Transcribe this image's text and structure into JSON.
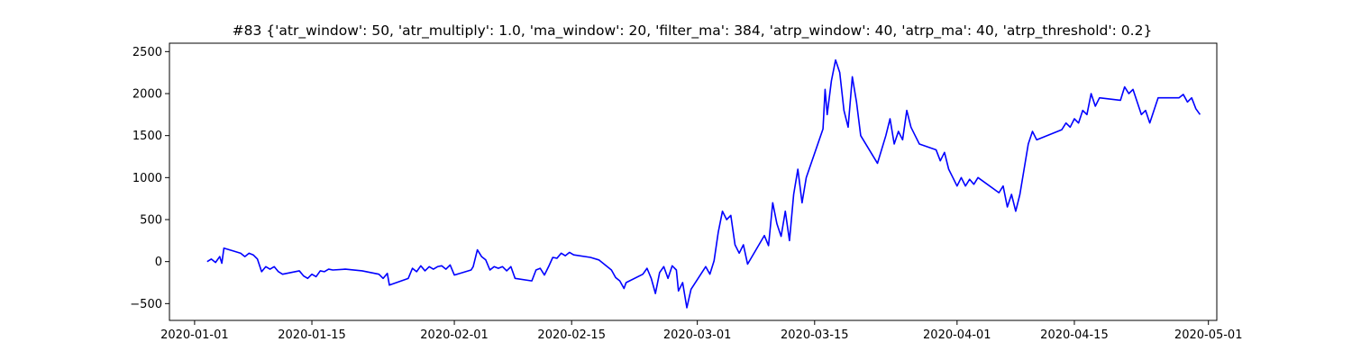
{
  "chart_data": {
    "type": "line",
    "title": "#83 {'atr_window': 50, 'atr_multiply': 1.0, 'ma_window': 20, 'filter_ma': 384, 'atrp_window': 40, 'atrp_ma': 40, 'atrp_threshold': 0.2}",
    "xlabel": "",
    "ylabel": "",
    "xlim": [
      "2019-12-29",
      "2020-05-02"
    ],
    "ylim": [
      -700,
      2600
    ],
    "grid": false,
    "line_color": "#0000ff",
    "x_ticks": [
      {
        "date": "2020-01-01",
        "label": "2020-01-01"
      },
      {
        "date": "2020-01-15",
        "label": "2020-01-15"
      },
      {
        "date": "2020-02-01",
        "label": "2020-02-01"
      },
      {
        "date": "2020-02-15",
        "label": "2020-02-15"
      },
      {
        "date": "2020-03-01",
        "label": "2020-03-01"
      },
      {
        "date": "2020-03-15",
        "label": "2020-03-15"
      },
      {
        "date": "2020-04-01",
        "label": "2020-04-01"
      },
      {
        "date": "2020-04-15",
        "label": "2020-04-15"
      },
      {
        "date": "2020-05-01",
        "label": "2020-05-01"
      }
    ],
    "y_ticks": [
      {
        "value": -500,
        "label": "−500"
      },
      {
        "value": 0,
        "label": "0"
      },
      {
        "value": 500,
        "label": "500"
      },
      {
        "value": 1000,
        "label": "1000"
      },
      {
        "value": 1500,
        "label": "1500"
      },
      {
        "value": 2000,
        "label": "2000"
      },
      {
        "value": 2500,
        "label": "2500"
      }
    ],
    "series": [
      {
        "points": [
          [
            "2020-01-02 12:00",
            0
          ],
          [
            "2020-01-03 00:00",
            30
          ],
          [
            "2020-01-03 12:00",
            -10
          ],
          [
            "2020-01-04 00:00",
            60
          ],
          [
            "2020-01-04 06:00",
            -20
          ],
          [
            "2020-01-04 12:00",
            160
          ],
          [
            "2020-01-05 12:00",
            130
          ],
          [
            "2020-01-06 12:00",
            100
          ],
          [
            "2020-01-07 00:00",
            60
          ],
          [
            "2020-01-07 12:00",
            100
          ],
          [
            "2020-01-08 00:00",
            80
          ],
          [
            "2020-01-08 12:00",
            30
          ],
          [
            "2020-01-09 00:00",
            -120
          ],
          [
            "2020-01-09 12:00",
            -60
          ],
          [
            "2020-01-10 00:00",
            -90
          ],
          [
            "2020-01-10 12:00",
            -60
          ],
          [
            "2020-01-11 00:00",
            -120
          ],
          [
            "2020-01-11 12:00",
            -150
          ],
          [
            "2020-01-13 12:00",
            -110
          ],
          [
            "2020-01-14 00:00",
            -170
          ],
          [
            "2020-01-14 12:00",
            -200
          ],
          [
            "2020-01-15 00:00",
            -150
          ],
          [
            "2020-01-15 12:00",
            -180
          ],
          [
            "2020-01-16 00:00",
            -110
          ],
          [
            "2020-01-16 12:00",
            -120
          ],
          [
            "2020-01-17 00:00",
            -90
          ],
          [
            "2020-01-17 12:00",
            -100
          ],
          [
            "2020-01-19 00:00",
            -90
          ],
          [
            "2020-01-21 00:00",
            -110
          ],
          [
            "2020-01-22 00:00",
            -130
          ],
          [
            "2020-01-23 00:00",
            -150
          ],
          [
            "2020-01-23 12:00",
            -200
          ],
          [
            "2020-01-24 00:00",
            -140
          ],
          [
            "2020-01-24 06:00",
            -280
          ],
          [
            "2020-01-26 12:00",
            -200
          ],
          [
            "2020-01-27 00:00",
            -80
          ],
          [
            "2020-01-27 12:00",
            -120
          ],
          [
            "2020-01-28 00:00",
            -50
          ],
          [
            "2020-01-28 12:00",
            -110
          ],
          [
            "2020-01-29 00:00",
            -60
          ],
          [
            "2020-01-29 12:00",
            -90
          ],
          [
            "2020-01-30 00:00",
            -60
          ],
          [
            "2020-01-30 12:00",
            -50
          ],
          [
            "2020-01-31 00:00",
            -90
          ],
          [
            "2020-01-31 12:00",
            -40
          ],
          [
            "2020-02-01 00:00",
            -160
          ],
          [
            "2020-02-03 00:00",
            -100
          ],
          [
            "2020-02-03 06:00",
            -60
          ],
          [
            "2020-02-03 18:00",
            140
          ],
          [
            "2020-02-04 06:00",
            60
          ],
          [
            "2020-02-04 18:00",
            20
          ],
          [
            "2020-02-05 06:00",
            -100
          ],
          [
            "2020-02-05 18:00",
            -60
          ],
          [
            "2020-02-06 06:00",
            -80
          ],
          [
            "2020-02-06 18:00",
            -60
          ],
          [
            "2020-02-07 06:00",
            -110
          ],
          [
            "2020-02-07 18:00",
            -60
          ],
          [
            "2020-02-08 06:00",
            -200
          ],
          [
            "2020-02-10 06:00",
            -230
          ],
          [
            "2020-02-10 18:00",
            -100
          ],
          [
            "2020-02-11 06:00",
            -80
          ],
          [
            "2020-02-11 18:00",
            -160
          ],
          [
            "2020-02-12 06:00",
            -60
          ],
          [
            "2020-02-12 18:00",
            50
          ],
          [
            "2020-02-13 06:00",
            40
          ],
          [
            "2020-02-13 18:00",
            100
          ],
          [
            "2020-02-14 06:00",
            70
          ],
          [
            "2020-02-14 18:00",
            110
          ],
          [
            "2020-02-15 06:00",
            80
          ],
          [
            "2020-02-17 06:00",
            50
          ],
          [
            "2020-02-18 06:00",
            20
          ],
          [
            "2020-02-18 18:00",
            -20
          ],
          [
            "2020-02-19 06:00",
            -60
          ],
          [
            "2020-02-19 18:00",
            -100
          ],
          [
            "2020-02-20 06:00",
            -190
          ],
          [
            "2020-02-20 18:00",
            -230
          ],
          [
            "2020-02-21 06:00",
            -320
          ],
          [
            "2020-02-21 12:00",
            -250
          ],
          [
            "2020-02-23 12:00",
            -150
          ],
          [
            "2020-02-24 00:00",
            -80
          ],
          [
            "2020-02-24 12:00",
            -200
          ],
          [
            "2020-02-25 00:00",
            -380
          ],
          [
            "2020-02-25 12:00",
            -130
          ],
          [
            "2020-02-26 00:00",
            -60
          ],
          [
            "2020-02-26 12:00",
            -200
          ],
          [
            "2020-02-27 00:00",
            -50
          ],
          [
            "2020-02-27 12:00",
            -100
          ],
          [
            "2020-02-27 18:00",
            -350
          ],
          [
            "2020-02-28 06:00",
            -250
          ],
          [
            "2020-02-28 18:00",
            -550
          ],
          [
            "2020-02-29 06:00",
            -330
          ],
          [
            "2020-03-02 00:00",
            -60
          ],
          [
            "2020-03-02 12:00",
            -150
          ],
          [
            "2020-03-03 00:00",
            10
          ],
          [
            "2020-03-03 12:00",
            350
          ],
          [
            "2020-03-04 00:00",
            600
          ],
          [
            "2020-03-04 12:00",
            500
          ],
          [
            "2020-03-05 00:00",
            550
          ],
          [
            "2020-03-05 12:00",
            200
          ],
          [
            "2020-03-06 00:00",
            100
          ],
          [
            "2020-03-06 12:00",
            200
          ],
          [
            "2020-03-07 00:00",
            -30
          ],
          [
            "2020-03-09 00:00",
            310
          ],
          [
            "2020-03-09 12:00",
            190
          ],
          [
            "2020-03-10 00:00",
            700
          ],
          [
            "2020-03-10 12:00",
            450
          ],
          [
            "2020-03-11 00:00",
            300
          ],
          [
            "2020-03-11 12:00",
            600
          ],
          [
            "2020-03-12 00:00",
            250
          ],
          [
            "2020-03-12 12:00",
            800
          ],
          [
            "2020-03-13 00:00",
            1100
          ],
          [
            "2020-03-13 12:00",
            700
          ],
          [
            "2020-03-14 00:00",
            1000
          ],
          [
            "2020-03-16 00:00",
            1580
          ],
          [
            "2020-03-16 06:00",
            2050
          ],
          [
            "2020-03-16 12:00",
            1750
          ],
          [
            "2020-03-17 00:00",
            2150
          ],
          [
            "2020-03-17 12:00",
            2400
          ],
          [
            "2020-03-18 00:00",
            2250
          ],
          [
            "2020-03-18 12:00",
            1800
          ],
          [
            "2020-03-19 00:00",
            1600
          ],
          [
            "2020-03-19 12:00",
            2200
          ],
          [
            "2020-03-20 00:00",
            1900
          ],
          [
            "2020-03-20 12:00",
            1500
          ],
          [
            "2020-03-22 12:00",
            1170
          ],
          [
            "2020-03-23 12:00",
            1500
          ],
          [
            "2020-03-24 00:00",
            1700
          ],
          [
            "2020-03-24 12:00",
            1400
          ],
          [
            "2020-03-25 00:00",
            1550
          ],
          [
            "2020-03-25 12:00",
            1450
          ],
          [
            "2020-03-26 00:00",
            1800
          ],
          [
            "2020-03-26 12:00",
            1600
          ],
          [
            "2020-03-27 00:00",
            1500
          ],
          [
            "2020-03-27 12:00",
            1400
          ],
          [
            "2020-03-29 12:00",
            1330
          ],
          [
            "2020-03-30 00:00",
            1200
          ],
          [
            "2020-03-30 12:00",
            1300
          ],
          [
            "2020-03-31 00:00",
            1100
          ],
          [
            "2020-03-31 12:00",
            1000
          ],
          [
            "2020-04-01 00:00",
            900
          ],
          [
            "2020-04-01 12:00",
            1000
          ],
          [
            "2020-04-02 00:00",
            900
          ],
          [
            "2020-04-02 12:00",
            980
          ],
          [
            "2020-04-03 00:00",
            920
          ],
          [
            "2020-04-03 12:00",
            1000
          ],
          [
            "2020-04-06 00:00",
            820
          ],
          [
            "2020-04-06 12:00",
            900
          ],
          [
            "2020-04-07 00:00",
            650
          ],
          [
            "2020-04-07 12:00",
            800
          ],
          [
            "2020-04-08 00:00",
            600
          ],
          [
            "2020-04-08 12:00",
            800
          ],
          [
            "2020-04-09 00:00",
            1100
          ],
          [
            "2020-04-09 12:00",
            1400
          ],
          [
            "2020-04-10 00:00",
            1550
          ],
          [
            "2020-04-10 12:00",
            1450
          ],
          [
            "2020-04-13 12:00",
            1570
          ],
          [
            "2020-04-14 00:00",
            1650
          ],
          [
            "2020-04-14 12:00",
            1600
          ],
          [
            "2020-04-15 00:00",
            1700
          ],
          [
            "2020-04-15 12:00",
            1650
          ],
          [
            "2020-04-16 00:00",
            1800
          ],
          [
            "2020-04-16 12:00",
            1750
          ],
          [
            "2020-04-17 00:00",
            2000
          ],
          [
            "2020-04-17 12:00",
            1850
          ],
          [
            "2020-04-18 00:00",
            1950
          ],
          [
            "2020-04-20 12:00",
            1920
          ],
          [
            "2020-04-21 00:00",
            2080
          ],
          [
            "2020-04-21 12:00",
            2000
          ],
          [
            "2020-04-22 00:00",
            2050
          ],
          [
            "2020-04-22 12:00",
            1900
          ],
          [
            "2020-04-23 00:00",
            1750
          ],
          [
            "2020-04-23 12:00",
            1800
          ],
          [
            "2020-04-24 00:00",
            1650
          ],
          [
            "2020-04-24 12:00",
            1800
          ],
          [
            "2020-04-25 00:00",
            1950
          ],
          [
            "2020-04-27 12:00",
            1950
          ],
          [
            "2020-04-28 00:00",
            1990
          ],
          [
            "2020-04-28 12:00",
            1900
          ],
          [
            "2020-04-29 00:00",
            1950
          ],
          [
            "2020-04-29 12:00",
            1820
          ],
          [
            "2020-04-30 00:00",
            1750
          ]
        ]
      }
    ]
  }
}
